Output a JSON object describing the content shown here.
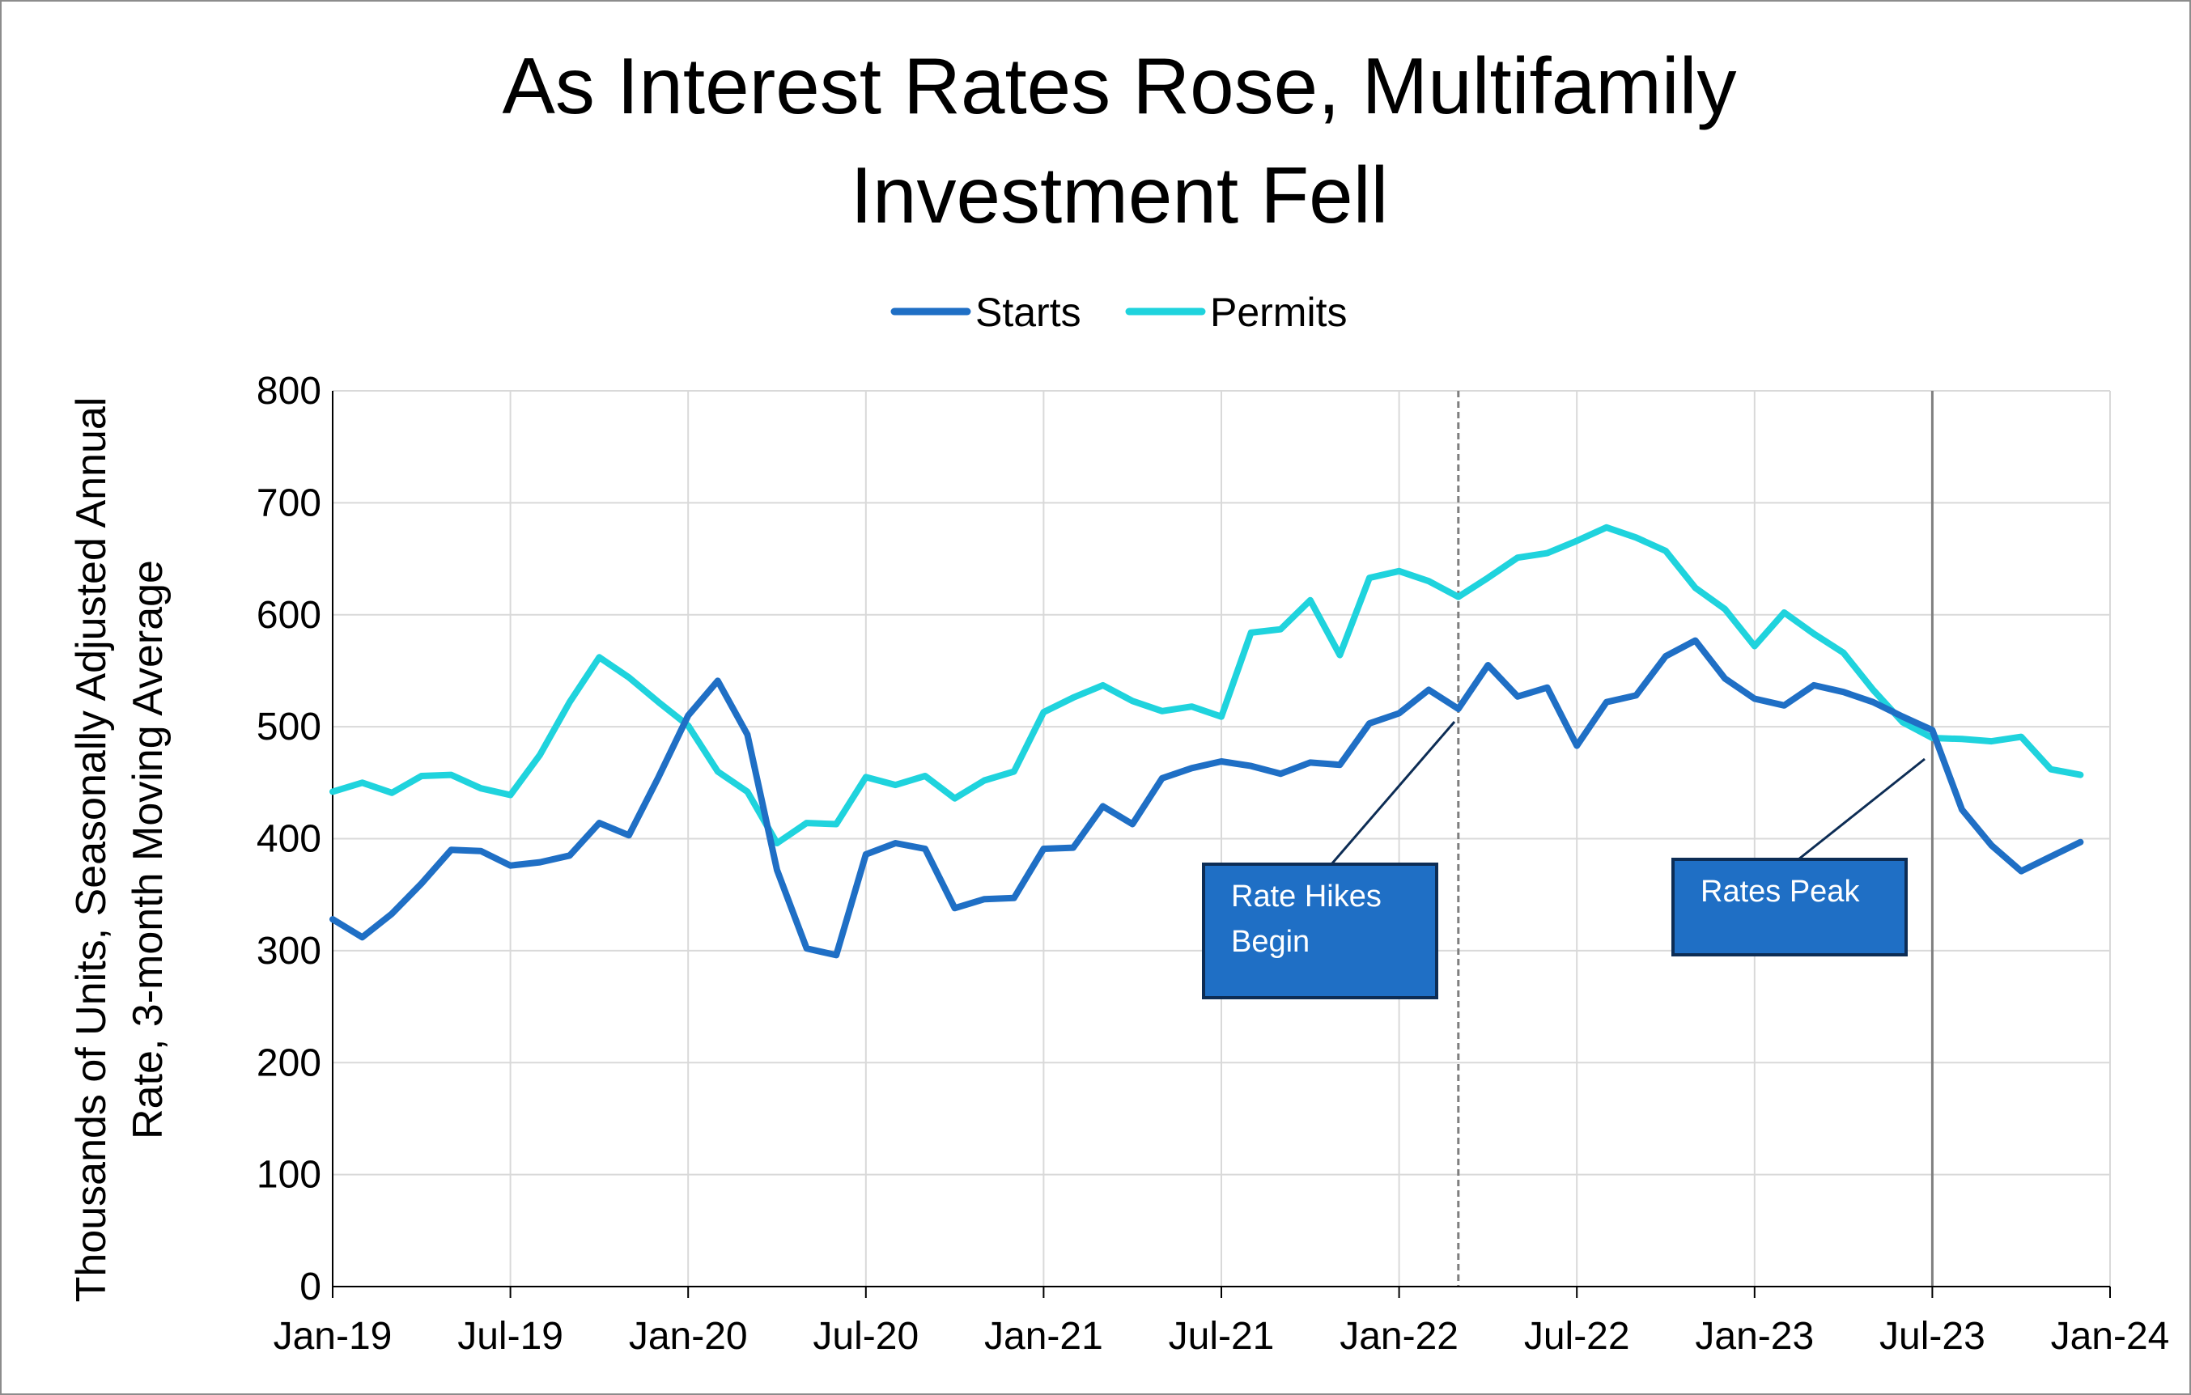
{
  "chart_data": {
    "type": "line",
    "title_lines": [
      "As Interest Rates Rose, Multifamily",
      "Investment Fell"
    ],
    "ylabel_lines": [
      "Thousands of Units, Seasonally Adjusted Annual",
      "Rate, 3-month Moving Average"
    ],
    "xlabel": "",
    "ylim": [
      0,
      800
    ],
    "yticks": [
      0,
      100,
      200,
      300,
      400,
      500,
      600,
      700,
      800
    ],
    "x_tick_labels": [
      "Jan-19",
      "Jul-19",
      "Jan-20",
      "Jul-20",
      "Jan-21",
      "Jul-21",
      "Jan-22",
      "Jul-22",
      "Jan-23",
      "Jul-23",
      "Jan-24"
    ],
    "x_start": "2019-01",
    "x_end": "2024-01",
    "grid": true,
    "legend_position": "top",
    "x": [
      "2019-01",
      "2019-02",
      "2019-03",
      "2019-04",
      "2019-05",
      "2019-06",
      "2019-07",
      "2019-08",
      "2019-09",
      "2019-10",
      "2019-11",
      "2019-12",
      "2020-01",
      "2020-02",
      "2020-03",
      "2020-04",
      "2020-05",
      "2020-06",
      "2020-07",
      "2020-08",
      "2020-09",
      "2020-10",
      "2020-11",
      "2020-12",
      "2021-01",
      "2021-02",
      "2021-03",
      "2021-04",
      "2021-05",
      "2021-06",
      "2021-07",
      "2021-08",
      "2021-09",
      "2021-10",
      "2021-11",
      "2021-12",
      "2022-01",
      "2022-02",
      "2022-03",
      "2022-04",
      "2022-05",
      "2022-06",
      "2022-07",
      "2022-08",
      "2022-09",
      "2022-10",
      "2022-11",
      "2022-12",
      "2023-01",
      "2023-02",
      "2023-03",
      "2023-04",
      "2023-05",
      "2023-06",
      "2023-07",
      "2023-08",
      "2023-09",
      "2023-10",
      "2023-11",
      "2023-12"
    ],
    "series": [
      {
        "name": "Starts",
        "color": "#1f6fc5",
        "values": [
          328,
          312,
          333,
          360,
          390,
          389,
          376,
          379,
          385,
          414,
          403,
          455,
          510,
          541,
          493,
          372,
          302,
          296,
          386,
          396,
          391,
          338,
          346,
          347,
          391,
          392,
          429,
          413,
          454,
          463,
          469,
          465,
          458,
          468,
          466,
          503,
          512,
          533,
          516,
          555,
          527,
          535,
          483,
          522,
          528,
          563,
          577,
          543,
          525,
          519,
          537,
          531,
          522,
          509,
          497,
          426,
          394,
          371,
          384,
          397
        ]
      },
      {
        "name": "Permits",
        "color": "#1fd3dd",
        "values": [
          442,
          450,
          441,
          456,
          457,
          445,
          439,
          475,
          522,
          562,
          544,
          522,
          501,
          460,
          442,
          396,
          414,
          413,
          455,
          448,
          456,
          436,
          452,
          460,
          513,
          526,
          537,
          523,
          514,
          518,
          509,
          584,
          587,
          613,
          564,
          633,
          639,
          630,
          616,
          633,
          651,
          655,
          666,
          678,
          669,
          657,
          624,
          605,
          572,
          602,
          583,
          566,
          533,
          504,
          490,
          489,
          487,
          491,
          462,
          457
        ]
      }
    ],
    "annotations": [
      {
        "lines": [
          "Rate Hikes",
          "Begin"
        ],
        "x_date": "2022-03",
        "marker": "dashed",
        "color": "#1f6fc5"
      },
      {
        "lines": [
          "Rates Peak"
        ],
        "x_date": "2023-07",
        "marker": "solid",
        "color": "#1f6fc5"
      }
    ]
  }
}
